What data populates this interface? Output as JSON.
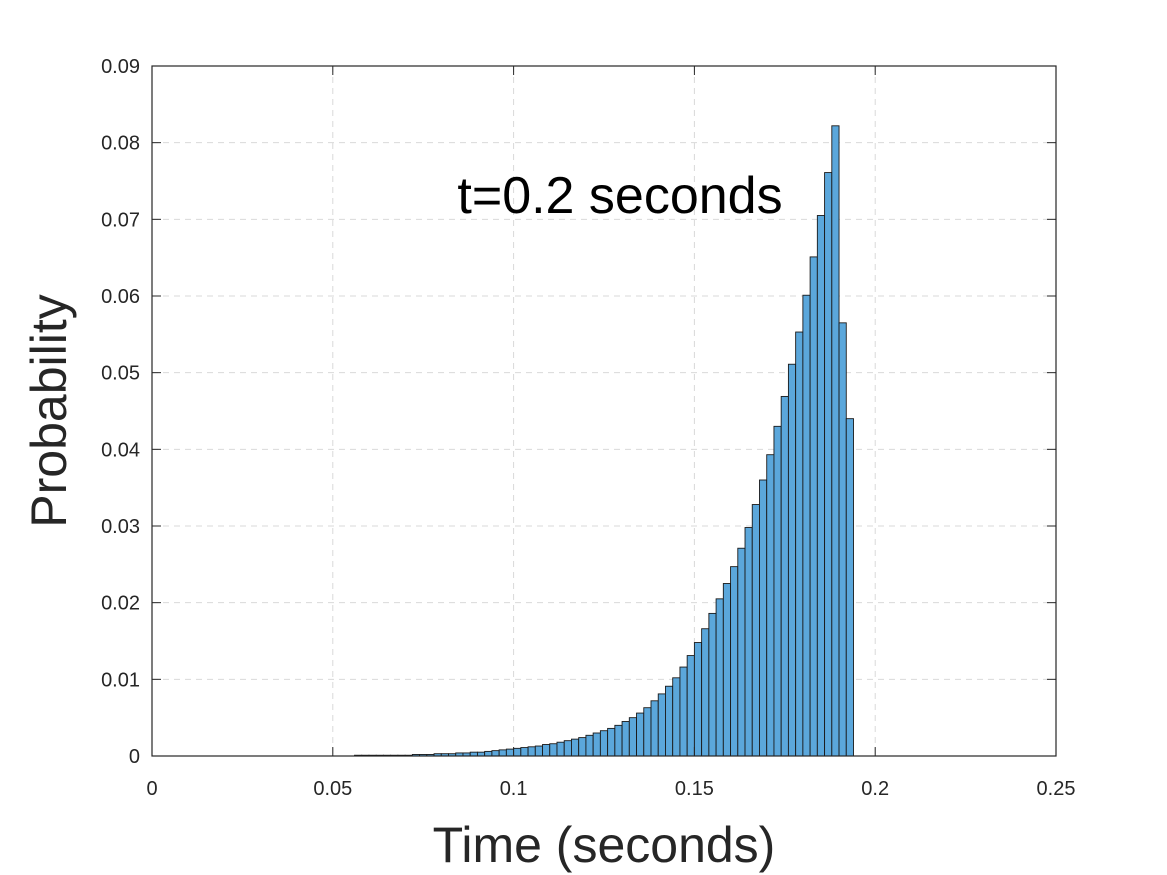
{
  "chart_data": {
    "type": "bar",
    "subtype": "histogram",
    "title": "",
    "annotation": "t=0.2 seconds",
    "xlabel": "Time (seconds)",
    "ylabel": "Probability",
    "xlim": [
      0,
      0.25
    ],
    "ylim": [
      0,
      0.09
    ],
    "xticks": [
      "0",
      "0.05",
      "0.1",
      "0.15",
      "0.2",
      "0.25"
    ],
    "yticks": [
      "0",
      "0.01",
      "0.02",
      "0.03",
      "0.04",
      "0.05",
      "0.06",
      "0.07",
      "0.08",
      "0.09"
    ],
    "grid": true,
    "bin_width": 0.002,
    "bin_start": 0,
    "values": [
      0.0,
      0.0,
      0.0,
      0.0,
      0.0,
      0.0,
      0.0,
      0.0,
      0.0,
      0.0,
      0.0,
      0.0,
      0.0,
      0.0,
      0.0,
      0.0,
      0.0,
      0.0,
      0.0,
      0.0,
      0.0,
      0.0,
      0.0,
      0.0,
      0.0,
      0.0,
      0.0,
      0.0,
      0.0001,
      0.0001,
      0.0001,
      0.0001,
      0.0001,
      0.0001,
      0.0001,
      0.0001,
      0.0002,
      0.0002,
      0.0002,
      0.0003,
      0.0003,
      0.0003,
      0.0004,
      0.0004,
      0.0005,
      0.0005,
      0.0006,
      0.0007,
      0.0008,
      0.0009,
      0.001,
      0.0011,
      0.0012,
      0.0013,
      0.0015,
      0.0016,
      0.0018,
      0.002,
      0.0022,
      0.0024,
      0.0027,
      0.003,
      0.0033,
      0.0036,
      0.004,
      0.0045,
      0.005,
      0.0056,
      0.0063,
      0.0072,
      0.0081,
      0.0091,
      0.0102,
      0.0116,
      0.0131,
      0.0148,
      0.0166,
      0.0186,
      0.0205,
      0.0225,
      0.0247,
      0.0271,
      0.0298,
      0.0328,
      0.036,
      0.0393,
      0.043,
      0.0469,
      0.0511,
      0.0553,
      0.0601,
      0.0651,
      0.0705,
      0.0761,
      0.0822,
      0.0565,
      0.044
    ],
    "bar_color": "#5ba7db",
    "edge_color": "#1a1a1a"
  }
}
